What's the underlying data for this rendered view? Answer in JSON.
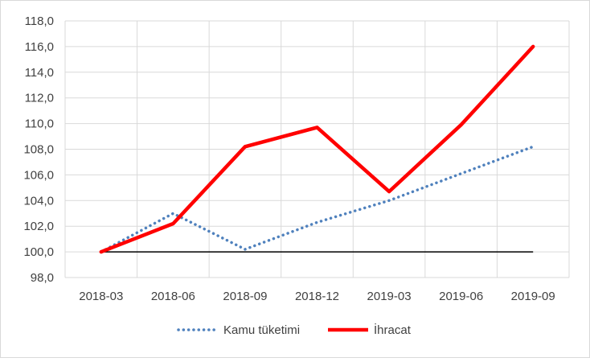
{
  "chart_data": {
    "type": "line",
    "title": "",
    "xlabel": "",
    "ylabel": "",
    "categories": [
      "2018-03",
      "2018-06",
      "2018-09",
      "2018-12",
      "2019-03",
      "2019-06",
      "2019-09"
    ],
    "ylim": [
      98.0,
      118.0
    ],
    "yticks": [
      "98,0",
      "100,0",
      "102,0",
      "104,0",
      "106,0",
      "108,0",
      "110,0",
      "112,0",
      "114,0",
      "116,0",
      "118,0"
    ],
    "grid": true,
    "legend": "bottom",
    "series": [
      {
        "name": "Kamu tüketimi",
        "values": [
          100.0,
          103.0,
          100.2,
          102.3,
          104.0,
          106.1,
          108.2
        ],
        "color": "#4f81bd",
        "style": "dotted"
      },
      {
        "name": "İhracat",
        "values": [
          100.0,
          102.2,
          108.2,
          109.7,
          104.7,
          109.9,
          116.0
        ],
        "color": "#ff0000",
        "style": "solid"
      }
    ],
    "reference_line": {
      "value": 100.0,
      "color": "#000000"
    }
  }
}
